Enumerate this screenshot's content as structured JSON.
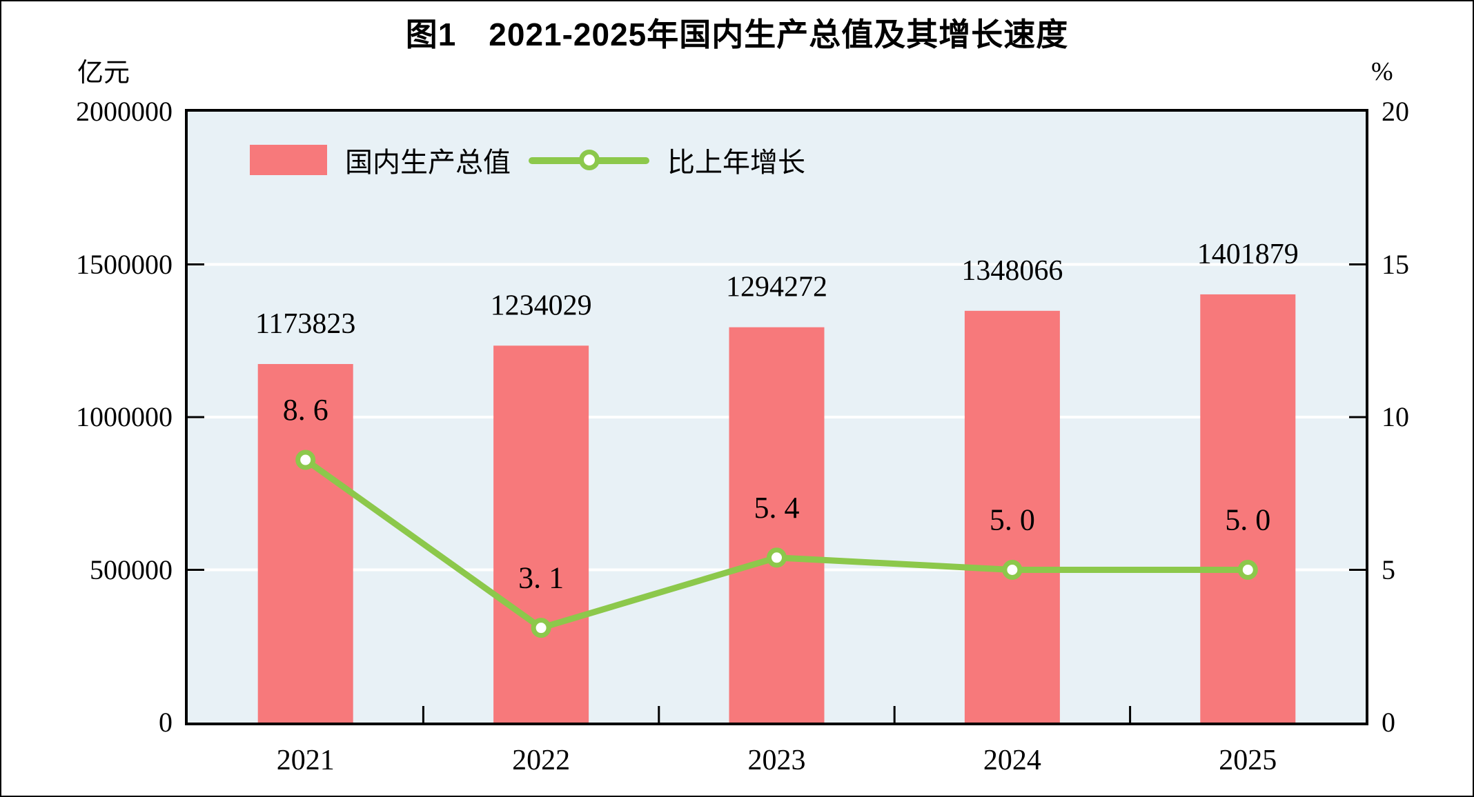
{
  "title": "图1　2021-2025年国内生产总值及其增长速度",
  "left_axis": {
    "unit": "亿元",
    "ticks": [
      "2000000",
      "1500000",
      "1000000",
      "500000",
      "0"
    ],
    "tick_values": [
      2000000,
      1500000,
      1000000,
      500000,
      0
    ]
  },
  "right_axis": {
    "unit": "%",
    "ticks": [
      "20",
      "15",
      "10",
      "5",
      "0"
    ],
    "tick_values": [
      20,
      15,
      10,
      5,
      0
    ]
  },
  "legend": {
    "gdp_label": "国内生产总值",
    "growth_label": "比上年增长"
  },
  "colors": {
    "bar": "#F7797B",
    "line": "#8CC84B",
    "marker_fill": "#FFFFFF",
    "plot_background": "#E8F1F6",
    "gridline": "#FFFFFF",
    "axis": "#000000",
    "text": "#000000"
  },
  "chart_data": {
    "type": "bar",
    "subtype": "bar+line combo, dual axis",
    "title": "图1　2021-2025年国内生产总值及其增长速度",
    "categories": [
      "2021",
      "2022",
      "2023",
      "2024",
      "2025"
    ],
    "series": [
      {
        "name": "国内生产总值",
        "type": "bar",
        "axis": "left",
        "unit": "亿元",
        "values": [
          1173823,
          1234029,
          1294272,
          1348066,
          1401879
        ],
        "labels": [
          "1173823",
          "1234029",
          "1294272",
          "1348066",
          "1401879"
        ]
      },
      {
        "name": "比上年增长",
        "type": "line",
        "axis": "right",
        "unit": "%",
        "values": [
          8.6,
          3.1,
          5.4,
          5.0,
          5.0
        ],
        "labels": [
          "8. 6",
          "3. 1",
          "5. 4",
          "5. 0",
          "5. 0"
        ]
      }
    ],
    "left_ylabel": "亿元",
    "right_ylabel": "%",
    "left_ylim": [
      0,
      2000000
    ],
    "right_ylim": [
      0,
      20
    ],
    "gridlines_left": [
      1500000,
      1000000,
      500000
    ],
    "grid": true,
    "legend_position": "inside-top-left"
  }
}
